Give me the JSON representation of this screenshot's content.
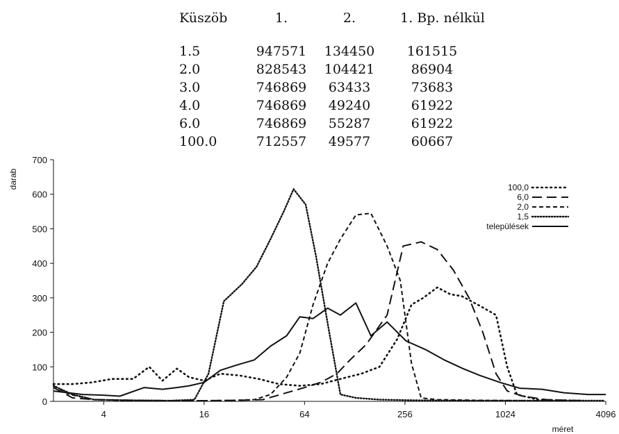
{
  "table": {
    "headers": [
      "Küszöb",
      "1.",
      "2.",
      "1. Bp. nélkül"
    ],
    "rows": [
      [
        "1.5",
        "947571",
        "134450",
        "161515"
      ],
      [
        "2.0",
        "828543",
        "104421",
        "86904"
      ],
      [
        "3.0",
        "746869",
        "63433",
        "73683"
      ],
      [
        "4.0",
        "746869",
        "49240",
        "61922"
      ],
      [
        "6.0",
        "746869",
        "55287",
        "61922"
      ],
      [
        "100.0",
        "712557",
        "49577",
        "60667"
      ]
    ]
  },
  "chart_data": {
    "type": "line",
    "xlabel": "méret",
    "ylabel": "darab",
    "x_scale": "log2",
    "xlim": [
      2,
      4096
    ],
    "ylim": [
      0,
      700
    ],
    "x_ticks": [
      4,
      16,
      64,
      256,
      1024,
      4096
    ],
    "x_tick_labels": [
      "4",
      "16",
      "64",
      "256",
      "1024",
      "4096"
    ],
    "y_ticks": [
      0,
      100,
      200,
      300,
      400,
      500,
      600,
      700
    ],
    "y_tick_labels": [
      "0",
      "100",
      "200",
      "300",
      "400",
      "500",
      "600",
      "700"
    ],
    "grid": false,
    "legend_position": "top-right",
    "series": [
      {
        "name": "100,0",
        "style": "dotted-sparse",
        "points": [
          [
            2,
            50
          ],
          [
            2.6,
            50
          ],
          [
            3.4,
            55
          ],
          [
            4.5,
            65
          ],
          [
            6,
            65
          ],
          [
            7.5,
            100
          ],
          [
            9,
            60
          ],
          [
            11,
            95
          ],
          [
            13,
            70
          ],
          [
            16,
            60
          ],
          [
            20,
            80
          ],
          [
            26,
            75
          ],
          [
            34,
            65
          ],
          [
            45,
            50
          ],
          [
            60,
            45
          ],
          [
            80,
            50
          ],
          [
            105,
            65
          ],
          [
            140,
            80
          ],
          [
            180,
            100
          ],
          [
            230,
            180
          ],
          [
            280,
            280
          ],
          [
            330,
            300
          ],
          [
            400,
            330
          ],
          [
            480,
            310
          ],
          [
            560,
            305
          ],
          [
            700,
            280
          ],
          [
            900,
            250
          ],
          [
            1050,
            100
          ],
          [
            1200,
            20
          ],
          [
            1600,
            5
          ],
          [
            2200,
            3
          ],
          [
            3000,
            2
          ]
        ]
      },
      {
        "name": "6,0",
        "style": "long-dash",
        "points": [
          [
            2,
            40
          ],
          [
            2.6,
            10
          ],
          [
            3.5,
            5
          ],
          [
            6,
            3
          ],
          [
            10,
            2
          ],
          [
            16,
            2
          ],
          [
            25,
            3
          ],
          [
            36,
            5
          ],
          [
            50,
            25
          ],
          [
            64,
            40
          ],
          [
            80,
            55
          ],
          [
            100,
            80
          ],
          [
            120,
            120
          ],
          [
            150,
            165
          ],
          [
            200,
            250
          ],
          [
            250,
            450
          ],
          [
            320,
            462
          ],
          [
            400,
            440
          ],
          [
            500,
            380
          ],
          [
            620,
            300
          ],
          [
            750,
            200
          ],
          [
            900,
            80
          ],
          [
            1050,
            30
          ],
          [
            1300,
            15
          ],
          [
            1800,
            5
          ],
          [
            3000,
            2
          ]
        ]
      },
      {
        "name": "2,0",
        "style": "short-dash",
        "points": [
          [
            2,
            45
          ],
          [
            2.5,
            20
          ],
          [
            3.5,
            5
          ],
          [
            6,
            2
          ],
          [
            10,
            2
          ],
          [
            16,
            2
          ],
          [
            24,
            3
          ],
          [
            32,
            5
          ],
          [
            40,
            20
          ],
          [
            50,
            70
          ],
          [
            60,
            140
          ],
          [
            72,
            280
          ],
          [
            88,
            400
          ],
          [
            105,
            470
          ],
          [
            130,
            540
          ],
          [
            160,
            545
          ],
          [
            200,
            450
          ],
          [
            240,
            350
          ],
          [
            280,
            110
          ],
          [
            320,
            10
          ],
          [
            400,
            5
          ],
          [
            700,
            3
          ],
          [
            1500,
            2
          ],
          [
            3000,
            2
          ]
        ]
      },
      {
        "name": "1,5",
        "style": "dotted-dense",
        "points": [
          [
            2,
            45
          ],
          [
            2.6,
            20
          ],
          [
            3.5,
            5
          ],
          [
            6,
            3
          ],
          [
            10,
            2
          ],
          [
            14,
            5
          ],
          [
            17,
            80
          ],
          [
            21,
            290
          ],
          [
            27,
            340
          ],
          [
            33,
            390
          ],
          [
            40,
            470
          ],
          [
            48,
            550
          ],
          [
            55,
            615
          ],
          [
            65,
            570
          ],
          [
            75,
            420
          ],
          [
            90,
            200
          ],
          [
            105,
            20
          ],
          [
            130,
            10
          ],
          [
            180,
            5
          ],
          [
            300,
            3
          ],
          [
            700,
            2
          ],
          [
            2000,
            2
          ],
          [
            4000,
            2
          ]
        ]
      },
      {
        "name": "települések",
        "style": "solid",
        "points": [
          [
            2,
            30
          ],
          [
            3,
            20
          ],
          [
            4,
            18
          ],
          [
            5,
            15
          ],
          [
            7,
            40
          ],
          [
            9,
            35
          ],
          [
            11,
            40
          ],
          [
            13,
            45
          ],
          [
            16,
            55
          ],
          [
            20,
            90
          ],
          [
            25,
            105
          ],
          [
            32,
            120
          ],
          [
            40,
            160
          ],
          [
            50,
            190
          ],
          [
            60,
            245
          ],
          [
            72,
            240
          ],
          [
            88,
            270
          ],
          [
            105,
            250
          ],
          [
            130,
            285
          ],
          [
            160,
            190
          ],
          [
            200,
            230
          ],
          [
            260,
            175
          ],
          [
            340,
            150
          ],
          [
            440,
            120
          ],
          [
            570,
            95
          ],
          [
            720,
            75
          ],
          [
            950,
            55
          ],
          [
            1250,
            38
          ],
          [
            1700,
            35
          ],
          [
            2300,
            25
          ],
          [
            3200,
            20
          ],
          [
            4096,
            20
          ]
        ]
      }
    ]
  }
}
